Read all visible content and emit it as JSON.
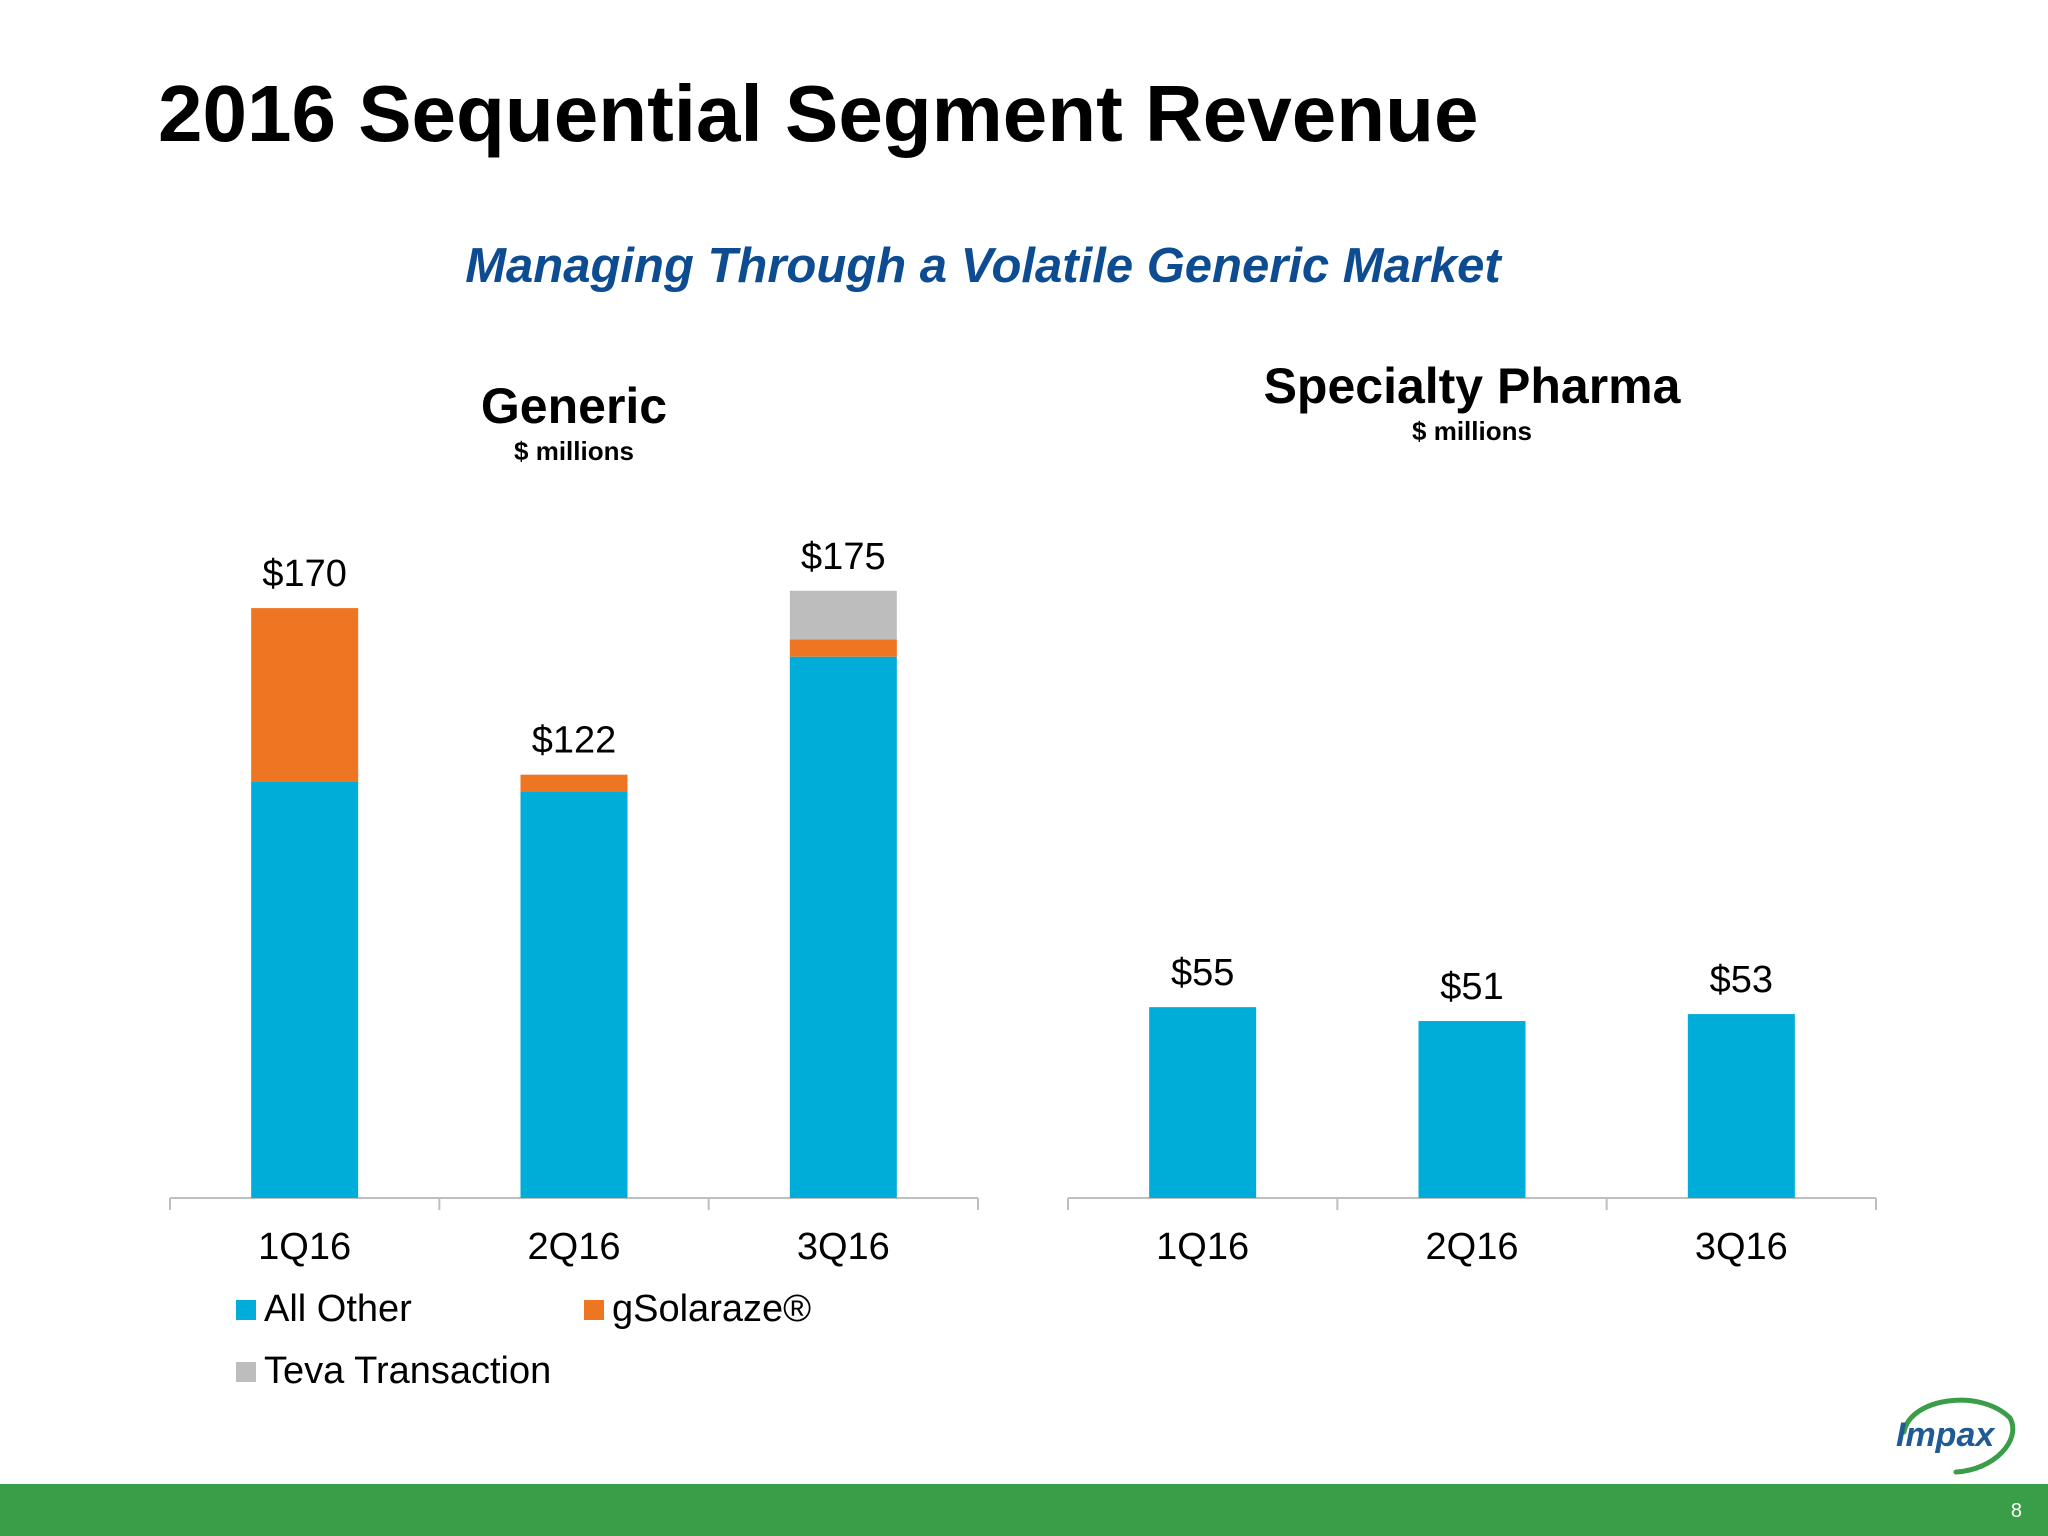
{
  "slide": {
    "title": "2016 Sequential Segment Revenue",
    "subtitle": "Managing Through  a Volatile Generic Market",
    "page_number": "8"
  },
  "colors": {
    "all_other": "#00acd8",
    "gsolaraze": "#ee7623",
    "teva": "#bdbdbd",
    "subtitle": "#0e4c92",
    "footer": "#3a9d48"
  },
  "logo": {
    "text": "Impax",
    "icon": "impax-swoosh-logo"
  },
  "chart_data": [
    {
      "type": "bar",
      "stacked": true,
      "title": "Generic",
      "subtitle": "$ millions",
      "categories": [
        "1Q16",
        "2Q16",
        "3Q16"
      ],
      "series": [
        {
          "name": "All Other",
          "values": [
            120,
            117,
            156
          ]
        },
        {
          "name": "gSolaraze®",
          "values": [
            50,
            5,
            5
          ]
        },
        {
          "name": "Teva Transaction",
          "values": [
            0,
            0,
            14
          ]
        }
      ],
      "totals": [
        170,
        122,
        175
      ],
      "total_labels": [
        "$170",
        "$122",
        "$175"
      ],
      "ylim": [
        0,
        170
      ],
      "grid": false,
      "legend": "bottom"
    },
    {
      "type": "bar",
      "title": "Specialty Pharma",
      "subtitle": "$ millions",
      "categories": [
        "1Q16",
        "2Q16",
        "3Q16"
      ],
      "values": [
        55,
        51,
        53
      ],
      "value_labels": [
        "$55",
        "$51",
        "$53"
      ],
      "ylim": [
        0,
        170
      ],
      "grid": false
    }
  ]
}
